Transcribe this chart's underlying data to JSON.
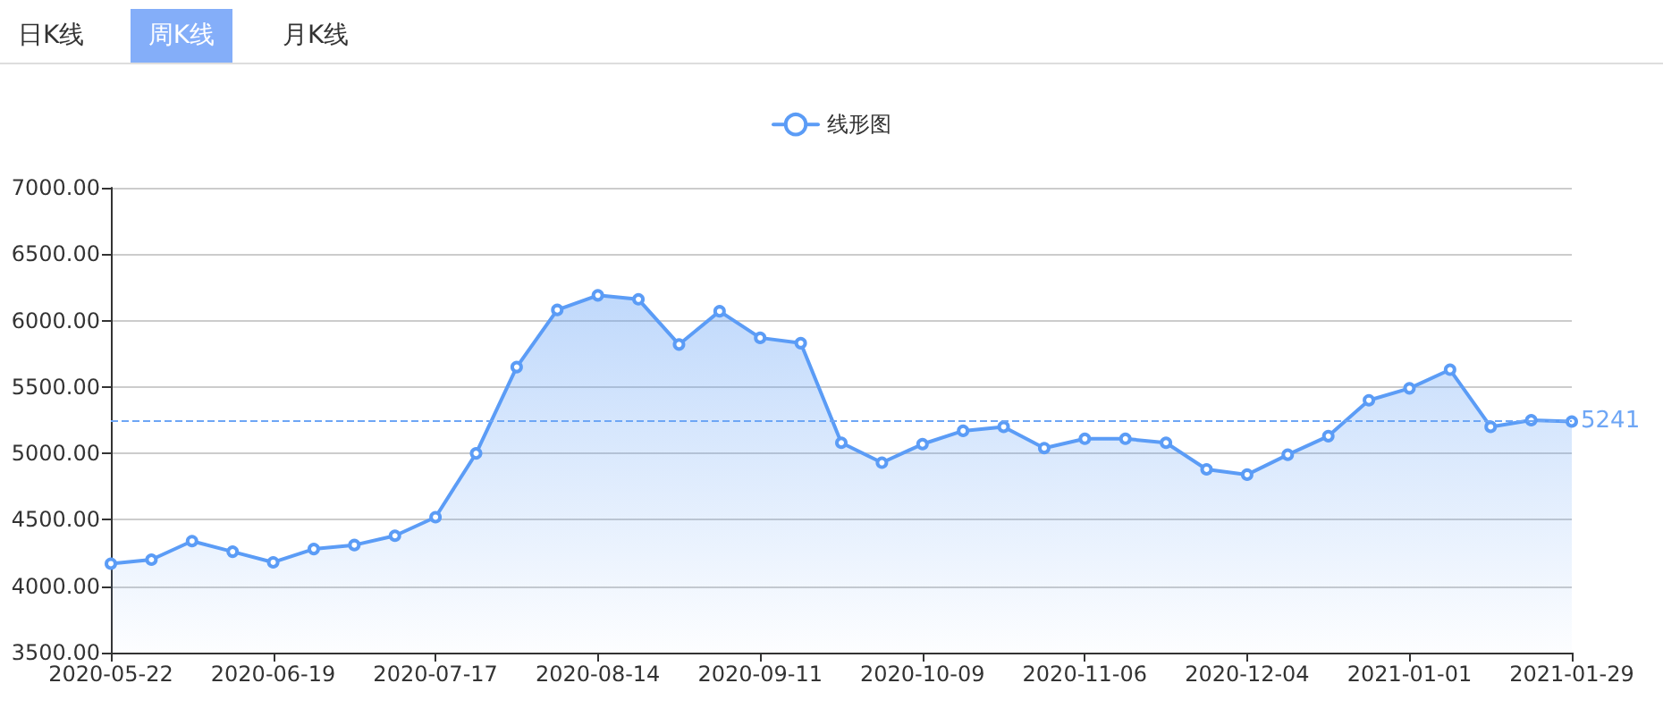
{
  "chart_data": {
    "type": "area",
    "annotations": [
      "日K线",
      "周K线",
      "月K线"
    ],
    "categories": [
      "2020-05-22",
      null,
      null,
      null,
      "2020-06-19",
      null,
      null,
      null,
      "2020-07-17",
      null,
      null,
      null,
      "2020-08-14",
      null,
      null,
      null,
      "2020-09-11",
      null,
      null,
      null,
      "2020-10-09",
      null,
      null,
      null,
      "2020-11-06",
      null,
      null,
      null,
      "2020-12-04",
      null,
      null,
      null,
      "2021-01-01",
      null,
      null,
      null,
      "2021-01-29"
    ],
    "series": [
      {
        "name": "线形图",
        "color": "#5b9cf6",
        "values": [
          4170,
          4200,
          4340,
          4260,
          4180,
          4280,
          4310,
          4380,
          4520,
          5000,
          5650,
          6080,
          6190,
          6160,
          5820,
          6070,
          5870,
          5830,
          5080,
          4930,
          5070,
          5170,
          5200,
          5040,
          5110,
          5110,
          5080,
          4880,
          4840,
          4990,
          5130,
          5400,
          5490,
          5630,
          5200,
          5250,
          5240
        ]
      }
    ],
    "ylim": [
      3500,
      7000
    ],
    "yticks": [
      {
        "value": 3500,
        "label": "3500.00"
      },
      {
        "value": 4000,
        "label": "4000.00"
      },
      {
        "value": 4500,
        "label": "4500.00"
      },
      {
        "value": 5000,
        "label": "5000.00"
      },
      {
        "value": 5500,
        "label": "5500.00"
      },
      {
        "value": 6000,
        "label": "6000.00"
      },
      {
        "value": 6500,
        "label": "6500.00"
      },
      {
        "value": 7000,
        "label": "7000.00"
      }
    ],
    "grid": "y",
    "legend": "top",
    "marker": "circle",
    "ref_lines": [
      {
        "axis": "y",
        "value": 5241,
        "label": "5241",
        "line_style": "dashed",
        "color": "#6ea6f5"
      }
    ]
  }
}
